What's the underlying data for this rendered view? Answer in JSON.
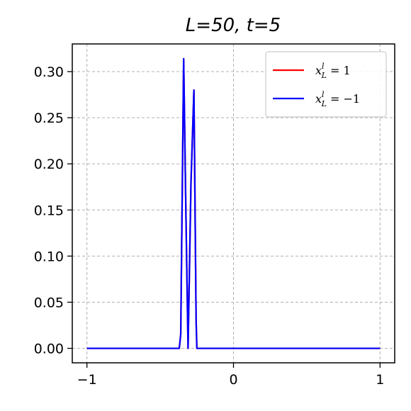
{
  "chart_data": {
    "type": "line",
    "title": "L=50, t=5",
    "xlabel": "",
    "ylabel": "",
    "xlim": [
      -1.1,
      1.1
    ],
    "ylim": [
      -0.0157,
      0.33
    ],
    "xticks": [
      -1,
      0,
      1
    ],
    "xtick_labels": [
      "−1",
      "0",
      "1"
    ],
    "yticks": [
      0.0,
      0.05,
      0.1,
      0.15,
      0.2,
      0.25,
      0.3
    ],
    "ytick_labels": [
      "0.00",
      "0.05",
      "0.10",
      "0.15",
      "0.20",
      "0.25",
      "0.30"
    ],
    "grid": true,
    "legend_position": "top-right",
    "series": [
      {
        "name": "x_L^l = 1",
        "legend_base": "x",
        "legend_sub": "L",
        "legend_sup": "l",
        "legend_rest": " = 1",
        "color": "#ff0000",
        "x": [
          -1.0,
          -0.37,
          -0.36,
          -0.34,
          -0.325,
          -0.31,
          -0.29,
          -0.27,
          -0.255,
          -0.25,
          1.0
        ],
        "y": [
          0.0,
          0.0,
          0.015,
          0.314,
          0.15,
          0.0,
          0.18,
          0.28,
          0.03,
          0.0,
          0.0
        ]
      },
      {
        "name": "x_L^l = −1",
        "legend_base": "x",
        "legend_sub": "L",
        "legend_sup": "l",
        "legend_rest": " = −1",
        "color": "#0000ff",
        "x": [
          -1.0,
          -0.37,
          -0.36,
          -0.34,
          -0.325,
          -0.31,
          -0.29,
          -0.27,
          -0.255,
          -0.25,
          1.0
        ],
        "y": [
          0.0,
          0.0,
          0.015,
          0.314,
          0.15,
          0.0,
          0.18,
          0.28,
          0.03,
          0.0,
          0.0
        ]
      }
    ]
  }
}
